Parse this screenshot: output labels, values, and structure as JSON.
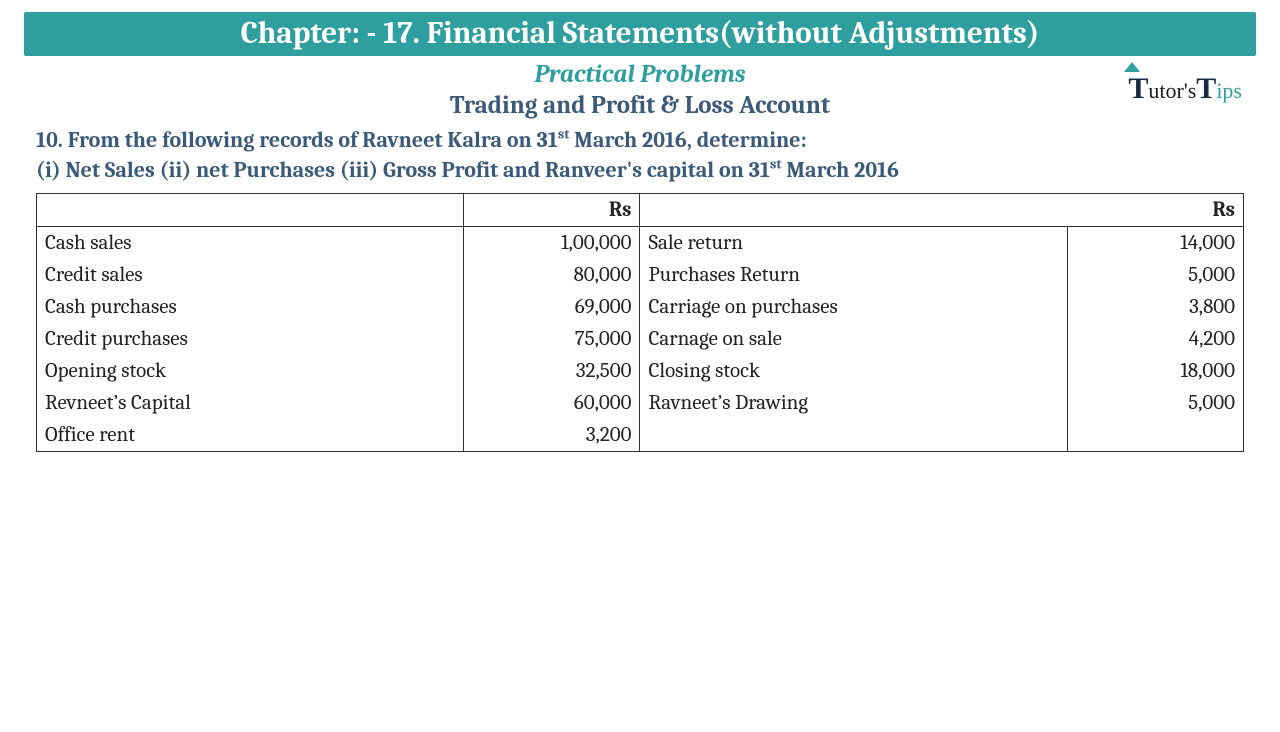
{
  "header": {
    "chapter_title": "Chapter: -  17. Financial Statements(without Adjustments)",
    "subtitle_italic": "Practical Problems",
    "subtitle_main": "Trading and Profit & Loss Account"
  },
  "question": {
    "line1_pre": "10. From the following records of Ravneet Kalra on 31",
    "line1_sup": "st",
    "line1_post": " March 2016, determine:",
    "line2_pre": "(i) Net Sales (ii) net Purchases (iii) Gross Profit and Ranveer's capital on 31",
    "line2_sup": "st",
    "line2_post": " March 2016"
  },
  "table": {
    "header_left_desc": "",
    "header_left_amt": "Rs",
    "header_right_desc": "",
    "header_right_amt": "Rs",
    "rows": [
      {
        "l": "Cash sales",
        "la": "1,00,000",
        "r": "Sale return",
        "ra": "14,000"
      },
      {
        "l": "Credit sales",
        "la": "80,000",
        "r": "Purchases Return",
        "ra": "5,000"
      },
      {
        "l": "Cash purchases",
        "la": "69,000",
        "r": "Carriage on purchases",
        "ra": "3,800"
      },
      {
        "l": "Credit purchases",
        "la": "75,000",
        "r": "Carnage on sale",
        "ra": "4,200"
      },
      {
        "l": "Opening stock",
        "la": "32,500",
        "r": "Closing stock",
        "ra": "18,000"
      },
      {
        "l": "Revneet’s Capital",
        "la": "60,000",
        "r": "Ravneet’s Drawing",
        "ra": "5,000"
      },
      {
        "l": "Office rent",
        "la": "3,200",
        "r": "",
        "ra": ""
      }
    ],
    "col_widths_pct": [
      34,
      14,
      34,
      14
    ]
  },
  "logo": {
    "text_tutor": "utor's",
    "text_ips": "ips"
  },
  "colors": {
    "teal": "#2f9e9e",
    "slate": "#3b5a7a",
    "text": "#222222",
    "border": "#333333",
    "white": "#ffffff"
  },
  "fonts": {
    "title_size": 31,
    "subtitle_size": 25,
    "question_size": 22,
    "table_size": 21
  }
}
